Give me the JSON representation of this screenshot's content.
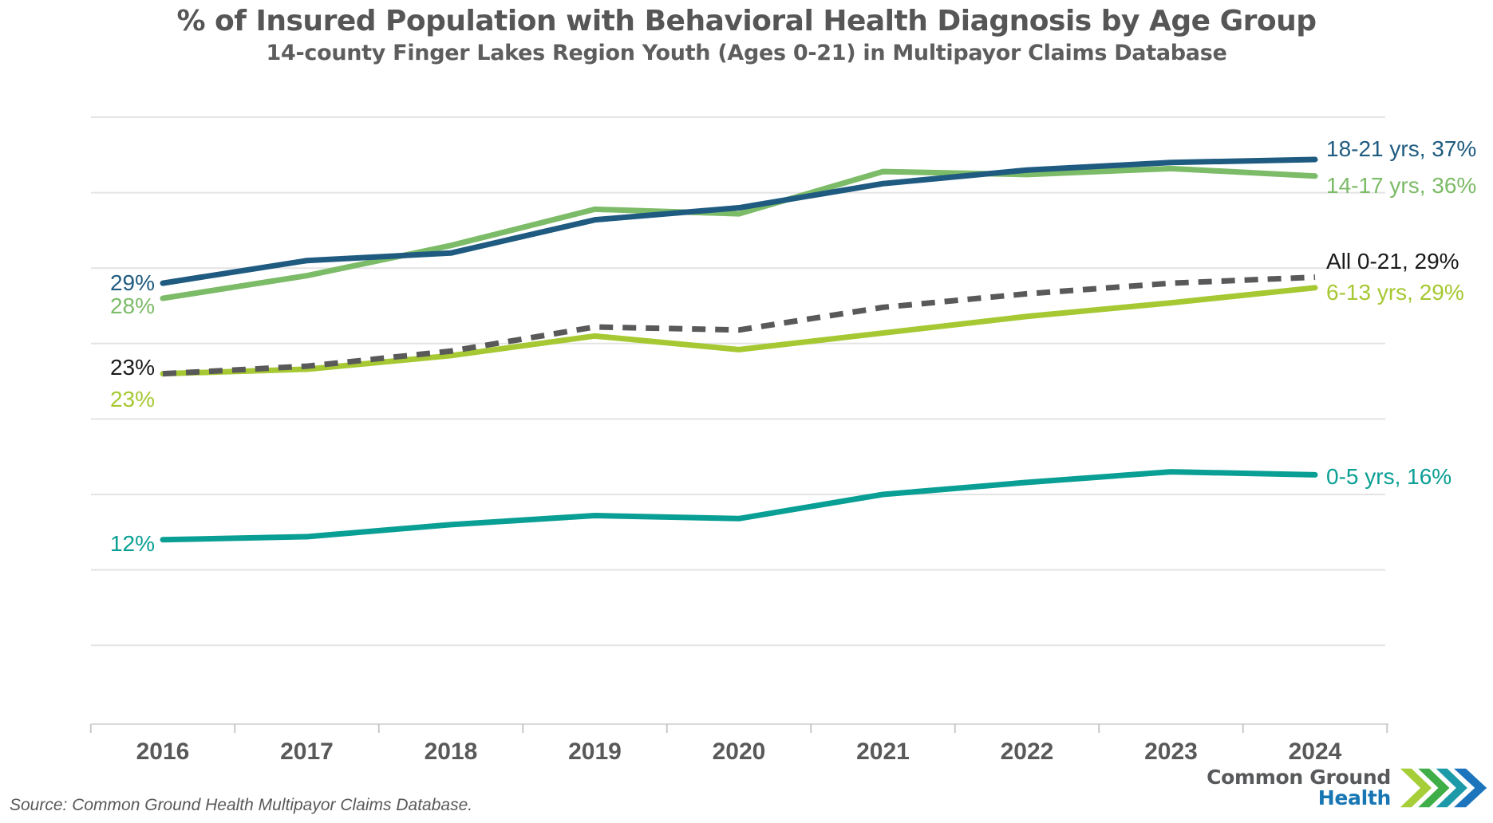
{
  "header": {
    "title": "% of Insured Population with Behavioral Health Diagnosis by Age Group",
    "subtitle": "14-county Finger Lakes Region Youth (Ages 0-21) in Multipayor Claims Database"
  },
  "chart_data": {
    "type": "line",
    "title": "% of Insured Population with Behavioral Health Diagnosis by Age Group",
    "subtitle": "14-county Finger Lakes Region Youth (Ages 0-21) in Multipayor Claims Database",
    "x": [
      "2016",
      "2017",
      "2018",
      "2019",
      "2020",
      "2021",
      "2022",
      "2023",
      "2024"
    ],
    "xlabel": "",
    "ylabel": "",
    "ylim": [
      0,
      40
    ],
    "grid_step": 5,
    "grid_on": true,
    "y_tick_labels_shown": false,
    "legend_position": "end-of-line labels",
    "series": [
      {
        "name": "18-21 yrs",
        "color": "#1f5b80",
        "label_color": "#1f5b80",
        "dashed": false,
        "values": [
          29,
          30.5,
          31,
          33.2,
          34,
          35.6,
          36.5,
          37,
          37.2
        ],
        "start_label": "29%",
        "end_label": "18-21 yrs, 37%"
      },
      {
        "name": "14-17 yrs",
        "color": "#7cbb67",
        "label_color": "#7cbb67",
        "dashed": false,
        "values": [
          28,
          29.5,
          31.5,
          33.9,
          33.6,
          36.4,
          36.2,
          36.6,
          36.1
        ],
        "start_label": "28%",
        "end_label": "14-17 yrs, 36%"
      },
      {
        "name": "All 0-21",
        "color": "#595959",
        "label_color": "#1a1a1a",
        "dashed": true,
        "values": [
          23,
          23.5,
          24.5,
          26.1,
          25.9,
          27.4,
          28.3,
          29,
          29.4
        ],
        "start_label": "23%",
        "end_label": "All 0-21, 29%"
      },
      {
        "name": "6-13 yrs",
        "color": "#a6c832",
        "label_color": "#a6c832",
        "dashed": false,
        "values": [
          23,
          23.3,
          24.2,
          25.5,
          24.6,
          25.7,
          26.8,
          27.7,
          28.7
        ],
        "start_label": "23%",
        "end_label": "6-13 yrs, 29%"
      },
      {
        "name": "0-5 yrs",
        "color": "#0a9f94",
        "label_color": "#0a9f94",
        "dashed": false,
        "values": [
          12,
          12.2,
          13,
          13.6,
          13.4,
          15,
          15.8,
          16.5,
          16.3
        ],
        "start_label": "12%",
        "end_label": "0-5 yrs, 16%"
      }
    ]
  },
  "footer": {
    "source": "Source: Common Ground Health Multipayor Claims Database.",
    "logo_line1": "Common Ground",
    "logo_line2": "Health"
  },
  "colors": {
    "gridline": "#e4e4e4",
    "axis_line": "#d9d9d9",
    "tick": "#c9c9c9",
    "year_label": "#595959",
    "title_text": "#565656"
  }
}
